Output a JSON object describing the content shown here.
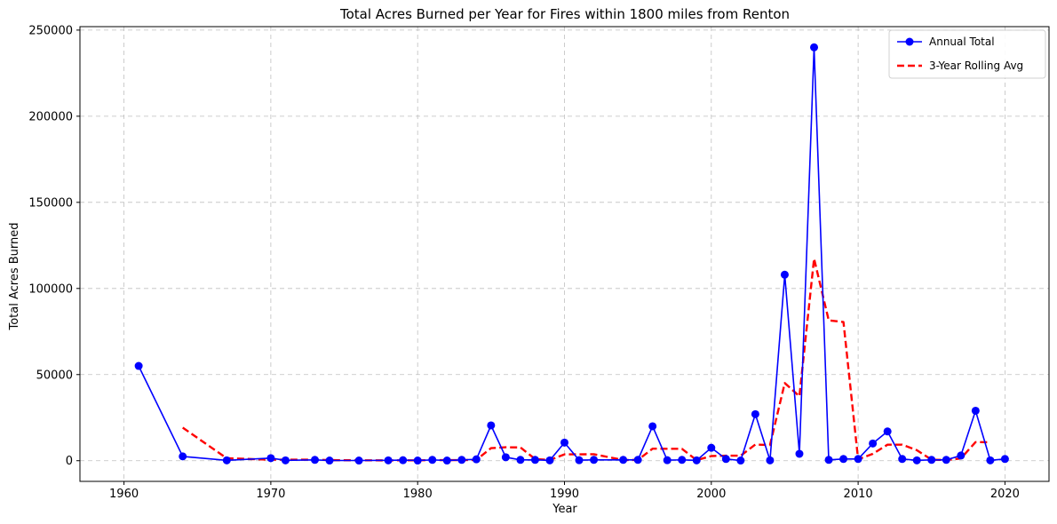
{
  "chart_data": {
    "type": "line",
    "title": "Total Acres Burned per Year for Fires within 1800 miles from Renton",
    "xlabel": "Year",
    "ylabel": "Total Acres Burned",
    "xlim": [
      1957,
      2023
    ],
    "ylim": [
      -12000,
      252000
    ],
    "x_ticks": [
      1960,
      1970,
      1980,
      1990,
      2000,
      2010,
      2020
    ],
    "y_ticks": [
      0,
      50000,
      100000,
      150000,
      200000,
      250000
    ],
    "grid": true,
    "legend_position": "top-right",
    "series": [
      {
        "name": "Annual Total",
        "color": "#0000ff",
        "style": "solid-with-markers",
        "points": [
          [
            1961,
            55000
          ],
          [
            1964,
            2500
          ],
          [
            1967,
            200
          ],
          [
            1970,
            1500
          ],
          [
            1971,
            200
          ],
          [
            1973,
            500
          ],
          [
            1974,
            100
          ],
          [
            1976,
            100
          ],
          [
            1978,
            200
          ],
          [
            1979,
            300
          ],
          [
            1980,
            100
          ],
          [
            1981,
            500
          ],
          [
            1982,
            100
          ],
          [
            1983,
            500
          ],
          [
            1984,
            800
          ],
          [
            1985,
            20500
          ],
          [
            1986,
            2000
          ],
          [
            1987,
            500
          ],
          [
            1988,
            500
          ],
          [
            1989,
            200
          ],
          [
            1990,
            10500
          ],
          [
            1991,
            300
          ],
          [
            1992,
            500
          ],
          [
            1994,
            500
          ],
          [
            1995,
            500
          ],
          [
            1996,
            20000
          ],
          [
            1997,
            300
          ],
          [
            1998,
            500
          ],
          [
            1999,
            200
          ],
          [
            2000,
            7500
          ],
          [
            2001,
            1000
          ],
          [
            2002,
            100
          ],
          [
            2003,
            27000
          ],
          [
            2004,
            200
          ],
          [
            2005,
            108000
          ],
          [
            2006,
            4000
          ],
          [
            2007,
            240000
          ],
          [
            2008,
            500
          ],
          [
            2009,
            1000
          ],
          [
            2010,
            1000
          ],
          [
            2011,
            10000
          ],
          [
            2012,
            17000
          ],
          [
            2013,
            1000
          ],
          [
            2014,
            200
          ],
          [
            2015,
            500
          ],
          [
            2016,
            500
          ],
          [
            2017,
            3000
          ],
          [
            2018,
            29000
          ],
          [
            2019,
            200
          ],
          [
            2020,
            1000
          ]
        ]
      },
      {
        "name": "3-Year Rolling Avg",
        "color": "#ff0000",
        "style": "dashed",
        "points": [
          [
            1964,
            19200
          ],
          [
            1967,
            1400
          ],
          [
            1970,
            600
          ],
          [
            1971,
            600
          ],
          [
            1973,
            600
          ],
          [
            1974,
            300
          ],
          [
            1976,
            200
          ],
          [
            1978,
            150
          ],
          [
            1979,
            200
          ],
          [
            1980,
            200
          ],
          [
            1981,
            300
          ],
          [
            1982,
            300
          ],
          [
            1983,
            400
          ],
          [
            1984,
            500
          ],
          [
            1985,
            7300
          ],
          [
            1986,
            7800
          ],
          [
            1987,
            7700
          ],
          [
            1988,
            1000
          ],
          [
            1989,
            400
          ],
          [
            1990,
            3700
          ],
          [
            1991,
            3700
          ],
          [
            1992,
            3800
          ],
          [
            1994,
            400
          ],
          [
            1995,
            500
          ],
          [
            1996,
            7000
          ],
          [
            1997,
            6900
          ],
          [
            1998,
            6900
          ],
          [
            1999,
            300
          ],
          [
            2000,
            2700
          ],
          [
            2001,
            2900
          ],
          [
            2002,
            2900
          ],
          [
            2003,
            9400
          ],
          [
            2004,
            9100
          ],
          [
            2005,
            45100
          ],
          [
            2006,
            37400
          ],
          [
            2007,
            117300
          ],
          [
            2008,
            81500
          ],
          [
            2009,
            80500
          ],
          [
            2010,
            800
          ],
          [
            2011,
            4000
          ],
          [
            2012,
            9300
          ],
          [
            2013,
            9300
          ],
          [
            2014,
            6100
          ],
          [
            2015,
            600
          ],
          [
            2016,
            400
          ],
          [
            2017,
            1300
          ],
          [
            2018,
            10800
          ],
          [
            2019,
            10700
          ]
        ]
      }
    ]
  }
}
